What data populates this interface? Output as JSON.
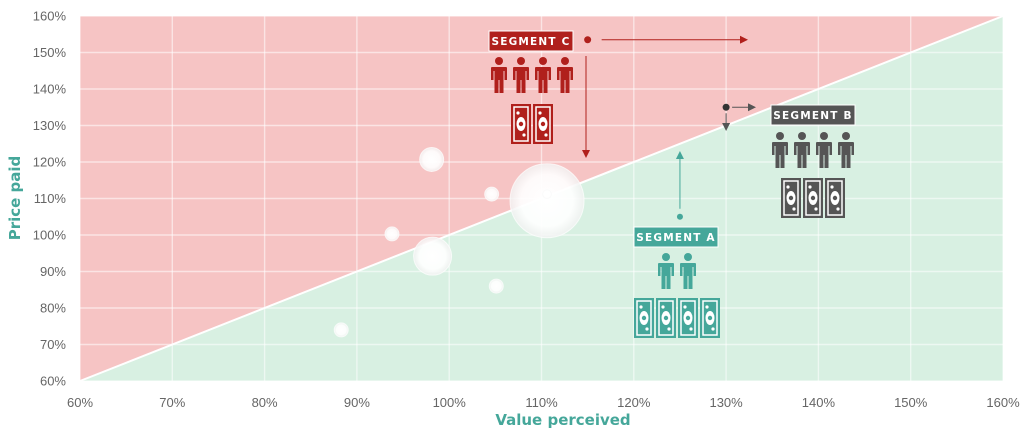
{
  "chart_data": {
    "type": "scatter",
    "xlabel": "Value perceived",
    "ylabel": "Price paid",
    "xlim": [
      60,
      160
    ],
    "ylim": [
      60,
      160
    ],
    "x_ticks": [
      "60%",
      "70%",
      "80%",
      "90%",
      "100%",
      "110%",
      "120%",
      "130%",
      "140%",
      "150%",
      "160%"
    ],
    "y_ticks": [
      "60%",
      "70%",
      "80%",
      "90%",
      "100%",
      "110%",
      "120%",
      "130%",
      "140%",
      "150%",
      "160%"
    ],
    "grid": true,
    "regions": {
      "above_diagonal_color": "#f6c4c4",
      "below_diagonal_color": "#d8f0e2"
    },
    "bubbles": [
      {
        "x": 88.3,
        "y": 74,
        "size": "small"
      },
      {
        "x": 93.8,
        "y": 100.3,
        "size": "small"
      },
      {
        "x": 98.2,
        "y": 94.2,
        "size": "medium"
      },
      {
        "x": 98.1,
        "y": 120.7,
        "size": "small-medium"
      },
      {
        "x": 104.6,
        "y": 111.2,
        "size": "small"
      },
      {
        "x": 105.1,
        "y": 86,
        "size": "small"
      },
      {
        "x": 110.6,
        "y": 109.4,
        "size": "large"
      },
      {
        "x": 110.6,
        "y": 111.2,
        "size": "tiny"
      }
    ],
    "segments": [
      {
        "name": "SEGMENT A",
        "x": 125,
        "y": 105,
        "color": "#45a79a",
        "people": 2,
        "money": 4,
        "arrow": "up"
      },
      {
        "name": "SEGMENT B",
        "x": 130,
        "y": 135,
        "color": "#555555",
        "people": 4,
        "money": 3,
        "arrow": "right-and-down"
      },
      {
        "name": "SEGMENT C",
        "x": 115,
        "y": 153.5,
        "color": "#b0201c",
        "people": 4,
        "money": 2,
        "arrow": "right-and-down"
      }
    ]
  }
}
